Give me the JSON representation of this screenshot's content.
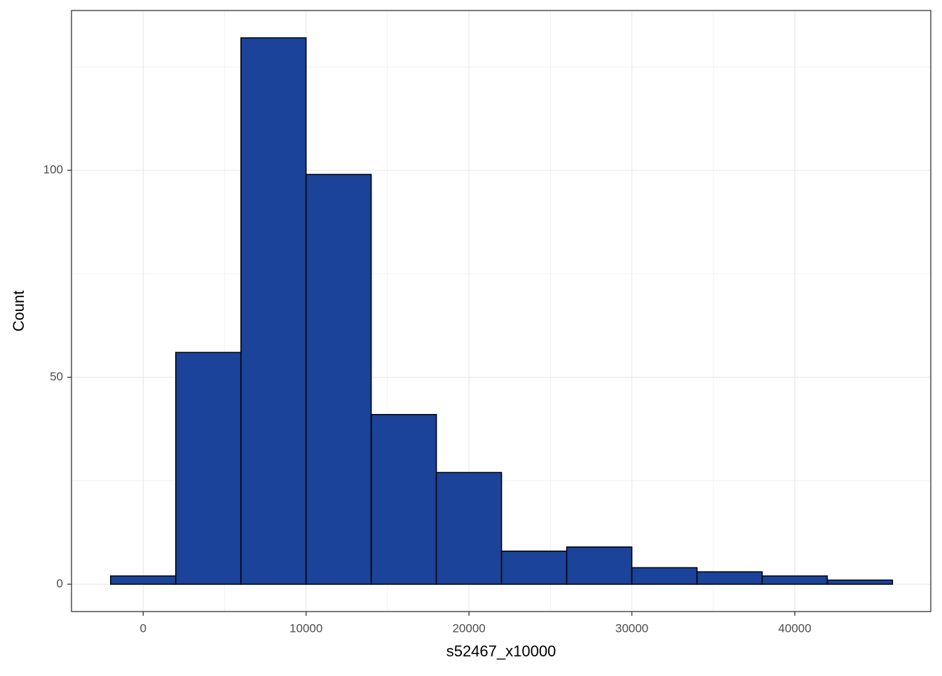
{
  "chart_data": {
    "type": "histogram",
    "x_label": "s52467_x10000",
    "y_label": "Count",
    "bins": [
      -2000,
      2000,
      6000,
      10000,
      14000,
      18000,
      22000,
      26000,
      30000,
      34000,
      38000,
      42000,
      46000
    ],
    "values": [
      2,
      56,
      132,
      99,
      41,
      27,
      8,
      9,
      4,
      3,
      2,
      1
    ],
    "color": "#1a4399",
    "edge_color": "#000000",
    "xlim": [
      -4400,
      48350
    ],
    "xticks": [
      0,
      10000,
      20000,
      30000,
      40000
    ],
    "ylim": [
      -6.6,
      138.6
    ],
    "yticks": [
      0,
      50,
      100
    ],
    "grid": true
  }
}
